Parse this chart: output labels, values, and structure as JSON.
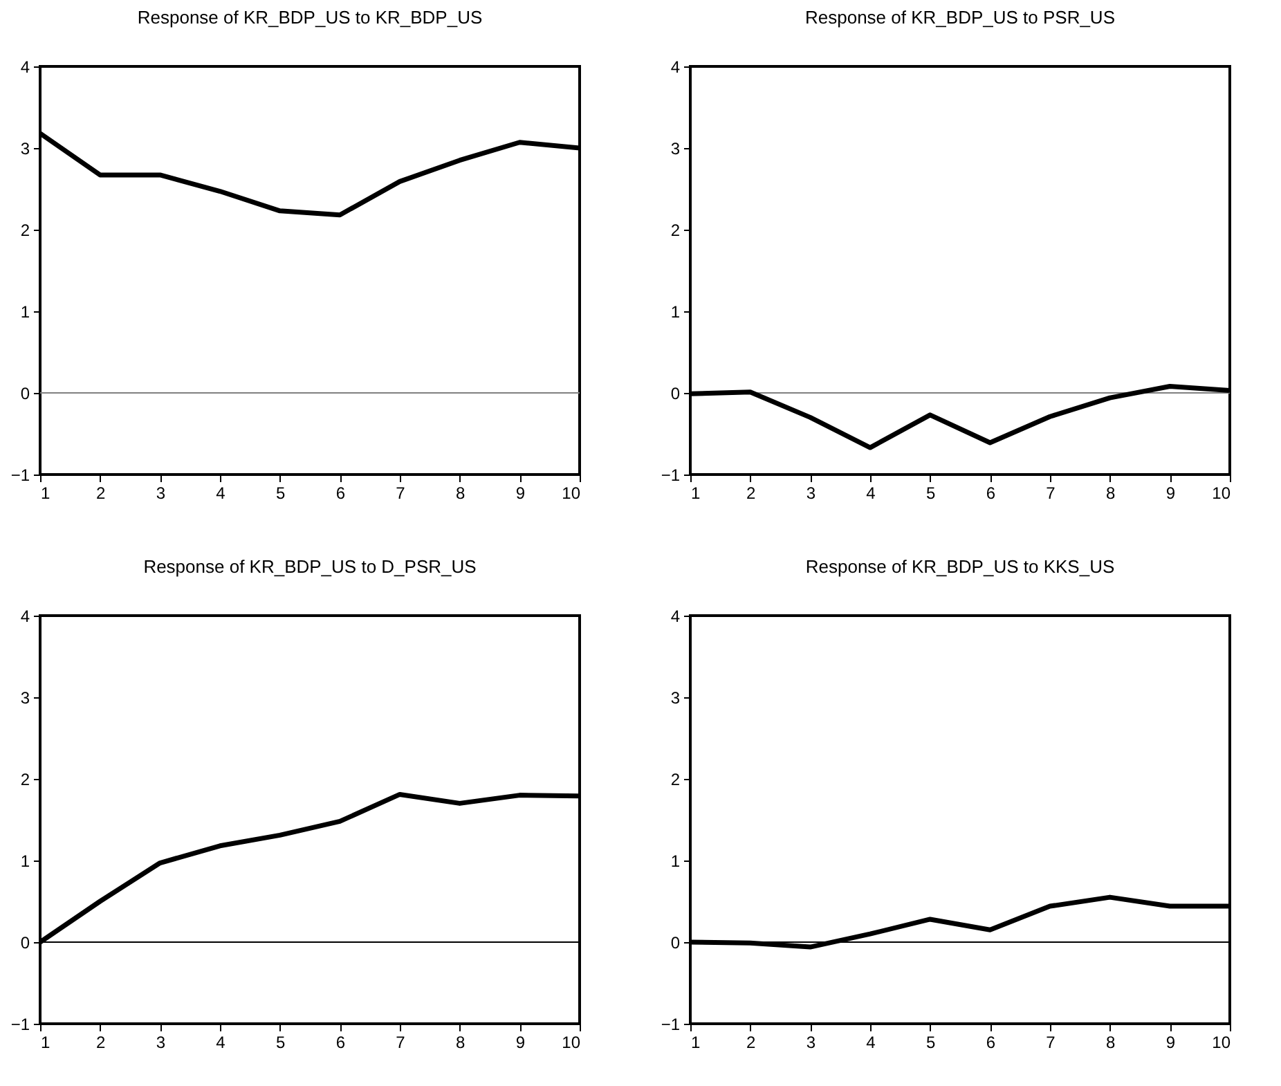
{
  "chart_data": [
    {
      "type": "line",
      "title": "Response of KR_BDP_US to KR_BDP_US",
      "x": [
        1,
        2,
        3,
        4,
        5,
        6,
        7,
        8,
        9,
        10
      ],
      "series": [
        {
          "color": "#000000",
          "values": [
            3.18,
            2.67,
            2.67,
            2.47,
            2.23,
            2.18,
            2.59,
            2.85,
            3.07,
            3.0
          ]
        }
      ],
      "xlim": [
        1,
        10
      ],
      "xticks": [
        1,
        2,
        3,
        4,
        5,
        6,
        7,
        8,
        9,
        10
      ],
      "ylim": [
        -1,
        4
      ],
      "yticks": [
        -1,
        0,
        1,
        2,
        3,
        4
      ],
      "ref_lines": [
        {
          "axis": "y",
          "value": 0,
          "color": "#808080"
        }
      ],
      "grid": false,
      "marker": "none",
      "line_style": "solid"
    },
    {
      "type": "line",
      "title": "Response of KR_BDP_US to PSR_US",
      "x": [
        1,
        2,
        3,
        4,
        5,
        6,
        7,
        8,
        9,
        10
      ],
      "series": [
        {
          "color": "#000000",
          "values": [
            -0.01,
            0.01,
            -0.3,
            -0.67,
            -0.27,
            -0.61,
            -0.29,
            -0.06,
            0.08,
            0.03
          ]
        }
      ],
      "xlim": [
        1,
        10
      ],
      "xticks": [
        1,
        2,
        3,
        4,
        5,
        6,
        7,
        8,
        9,
        10
      ],
      "ylim": [
        -1,
        4
      ],
      "yticks": [
        -1,
        0,
        1,
        2,
        3,
        4
      ],
      "ref_lines": [
        {
          "axis": "y",
          "value": 0,
          "color": "#808080"
        }
      ],
      "grid": false,
      "marker": "none",
      "line_style": "solid"
    },
    {
      "type": "line",
      "title": "Response of KR_BDP_US to D_PSR_US",
      "x": [
        1,
        2,
        3,
        4,
        5,
        6,
        7,
        8,
        9,
        10
      ],
      "series": [
        {
          "color": "#000000",
          "values": [
            0.0,
            0.5,
            0.97,
            1.18,
            1.31,
            1.48,
            1.81,
            1.7,
            1.8,
            1.79
          ]
        }
      ],
      "xlim": [
        1,
        10
      ],
      "xticks": [
        1,
        2,
        3,
        4,
        5,
        6,
        7,
        8,
        9,
        10
      ],
      "ylim": [
        -1,
        4
      ],
      "yticks": [
        -1,
        0,
        1,
        2,
        3,
        4
      ],
      "ref_lines": [
        {
          "axis": "y",
          "value": 0,
          "color": "#000000"
        }
      ],
      "grid": false,
      "marker": "none",
      "line_style": "solid"
    },
    {
      "type": "line",
      "title": "Response of KR_BDP_US to KKS_US",
      "x": [
        1,
        2,
        3,
        4,
        5,
        6,
        7,
        8,
        9,
        10
      ],
      "series": [
        {
          "color": "#000000",
          "values": [
            0.0,
            -0.01,
            -0.06,
            0.1,
            0.28,
            0.15,
            0.44,
            0.55,
            0.44,
            0.44
          ]
        }
      ],
      "xlim": [
        1,
        10
      ],
      "xticks": [
        1,
        2,
        3,
        4,
        5,
        6,
        7,
        8,
        9,
        10
      ],
      "ylim": [
        -1,
        4
      ],
      "yticks": [
        -1,
        0,
        1,
        2,
        3,
        4
      ],
      "ref_lines": [
        {
          "axis": "y",
          "value": 0,
          "color": "#000000"
        }
      ],
      "grid": false,
      "marker": "none",
      "line_style": "solid"
    }
  ]
}
